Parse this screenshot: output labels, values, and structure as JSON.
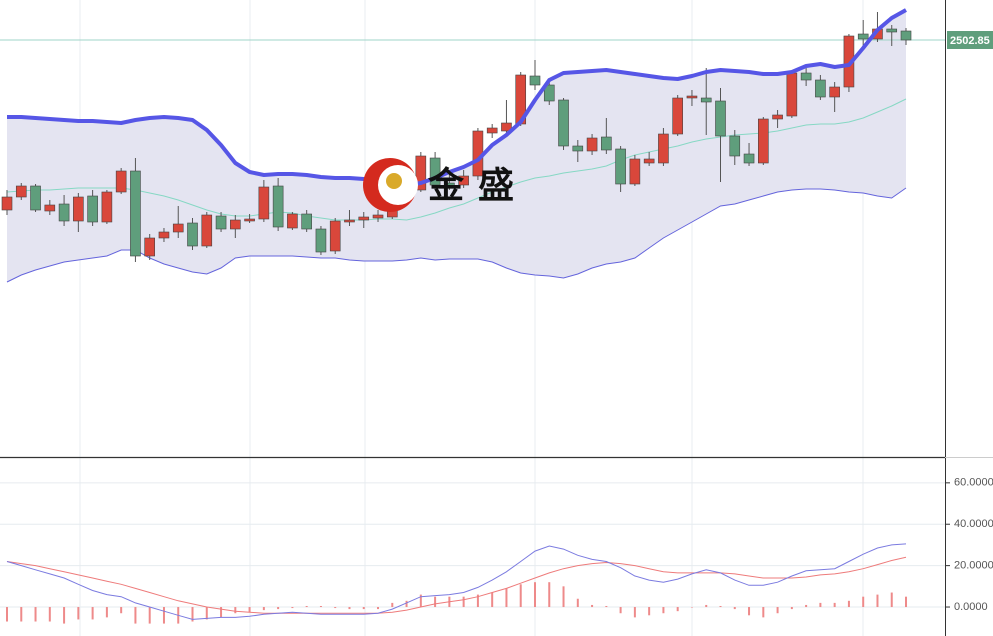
{
  "chart_data": [
    {
      "type": "candlestick",
      "watermark": "金 盛",
      "price_label": 2502.85,
      "ylim": [
        2461.15,
        2506.85
      ],
      "up_color": "#d9473b",
      "down_color": "#5f9e7c",
      "band_color": "#e4e4f1",
      "upper_color": "#5656e6",
      "middle_color": "#86d8c4",
      "lower_color": "#6464dc",
      "open": [
        2485.85,
        2487.15,
        2488.25,
        2485.75,
        2486.45,
        2484.75,
        2487.25,
        2484.65,
        2487.65,
        2489.75,
        2481.25,
        2483.05,
        2483.65,
        2484.55,
        2482.25,
        2485.25,
        2483.95,
        2484.75,
        2484.95,
        2488.25,
        2484.05,
        2485.45,
        2483.95,
        2481.75,
        2484.65,
        2484.85,
        2485.05,
        2485.15,
        2488.35,
        2487.85,
        2491.05,
        2488.55,
        2488.35,
        2489.25,
        2493.55,
        2493.75,
        2494.45,
        2499.25,
        2498.35,
        2496.85,
        2492.25,
        2491.75,
        2493.15,
        2491.95,
        2488.45,
        2490.55,
        2490.55,
        2493.45,
        2497.05,
        2497.05,
        2496.75,
        2493.25,
        2491.45,
        2490.55,
        2494.95,
        2495.25,
        2499.55,
        2498.85,
        2497.15,
        2498.15,
        2503.45,
        2502.95,
        2503.95,
        2503.75
      ],
      "close": [
        2487.15,
        2488.25,
        2485.85,
        2486.35,
        2484.75,
        2487.15,
        2484.65,
        2487.65,
        2489.75,
        2481.25,
        2483.05,
        2483.65,
        2484.45,
        2482.25,
        2485.35,
        2483.95,
        2484.85,
        2484.95,
        2488.15,
        2484.15,
        2485.45,
        2483.95,
        2481.65,
        2484.75,
        2484.85,
        2485.15,
        2485.35,
        2488.35,
        2489.65,
        2491.25,
        2488.35,
        2488.25,
        2489.25,
        2493.75,
        2494.05,
        2494.55,
        2499.35,
        2498.35,
        2496.75,
        2492.25,
        2491.75,
        2493.05,
        2491.85,
        2488.45,
        2490.95,
        2490.95,
        2493.45,
        2497.05,
        2497.25,
        2496.65,
        2493.25,
        2491.25,
        2490.55,
        2494.95,
        2495.35,
        2499.55,
        2498.85,
        2497.15,
        2498.15,
        2503.25,
        2502.95,
        2503.95,
        2503.65,
        2502.85
      ],
      "high": [
        2487.85,
        2488.55,
        2488.45,
        2486.85,
        2487.35,
        2487.55,
        2487.85,
        2487.85,
        2490.05,
        2491.05,
        2483.45,
        2484.05,
        2486.25,
        2485.05,
        2485.65,
        2485.65,
        2485.35,
        2485.45,
        2488.85,
        2489.05,
        2485.65,
        2485.85,
        2484.25,
        2485.05,
        2485.85,
        2485.65,
        2485.85,
        2488.85,
        2490.05,
        2491.65,
        2491.65,
        2489.65,
        2489.85,
        2494.05,
        2494.45,
        2496.85,
        2499.65,
        2500.85,
        2499.05,
        2497.05,
        2492.85,
        2493.45,
        2495.05,
        2492.25,
        2491.35,
        2491.65,
        2494.05,
        2497.35,
        2497.85,
        2500.05,
        2498.05,
        2493.85,
        2492.55,
        2495.15,
        2495.85,
        2499.85,
        2500.05,
        2499.35,
        2498.65,
        2503.45,
        2504.85,
        2505.65,
        2504.35,
        2504.05
      ],
      "low": [
        2485.35,
        2486.85,
        2485.65,
        2485.35,
        2484.25,
        2483.65,
        2484.25,
        2484.45,
        2487.45,
        2480.65,
        2480.85,
        2482.65,
        2483.05,
        2481.85,
        2482.05,
        2483.65,
        2483.05,
        2484.55,
        2484.65,
        2483.75,
        2483.85,
        2483.65,
        2481.35,
        2481.45,
        2484.25,
        2484.05,
        2484.65,
        2484.95,
        2488.05,
        2487.65,
        2487.85,
        2487.85,
        2488.05,
        2488.85,
        2493.05,
        2493.35,
        2494.25,
        2497.85,
        2496.35,
        2491.85,
        2490.65,
        2491.35,
        2491.45,
        2487.65,
        2488.25,
        2490.25,
        2490.25,
        2493.25,
        2496.25,
        2493.35,
        2488.65,
        2490.35,
        2490.25,
        2490.35,
        2494.05,
        2495.05,
        2498.25,
        2496.85,
        2495.65,
        2497.65,
        2502.05,
        2502.65,
        2502.25,
        2502.35
      ],
      "upper": [
        2495.15,
        2495.15,
        2495.05,
        2494.95,
        2494.85,
        2494.75,
        2494.75,
        2494.65,
        2494.55,
        2494.85,
        2495.05,
        2495.15,
        2495.05,
        2494.85,
        2493.85,
        2492.35,
        2490.55,
        2489.65,
        2489.35,
        2489.45,
        2489.45,
        2489.35,
        2489.15,
        2489.05,
        2489.05,
        2488.95,
        2488.75,
        2488.65,
        2488.35,
        2488.55,
        2489.05,
        2489.65,
        2490.15,
        2490.85,
        2492.35,
        2493.35,
        2494.65,
        2496.85,
        2498.85,
        2499.55,
        2499.65,
        2499.75,
        2499.85,
        2499.65,
        2499.45,
        2499.25,
        2499.05,
        2498.95,
        2499.25,
        2499.65,
        2499.85,
        2499.75,
        2499.65,
        2499.45,
        2499.45,
        2499.65,
        2500.25,
        2500.45,
        2500.15,
        2500.35,
        2502.05,
        2503.85,
        2505.05,
        2505.85
      ],
      "middle": [
        2487.65,
        2487.75,
        2487.85,
        2487.85,
        2487.95,
        2488.05,
        2488.05,
        2488.05,
        2488.05,
        2487.85,
        2487.55,
        2487.25,
        2486.85,
        2486.35,
        2485.85,
        2485.45,
        2485.25,
        2485.25,
        2485.45,
        2485.65,
        2485.55,
        2485.25,
        2485.05,
        2484.85,
        2484.85,
        2484.85,
        2484.95,
        2484.95,
        2484.85,
        2485.15,
        2485.55,
        2486.05,
        2486.45,
        2487.05,
        2487.65,
        2488.15,
        2488.65,
        2489.05,
        2489.25,
        2489.55,
        2489.75,
        2489.95,
        2490.25,
        2490.85,
        2491.35,
        2491.65,
        2491.95,
        2492.25,
        2492.65,
        2492.95,
        2493.15,
        2493.35,
        2493.45,
        2493.55,
        2493.75,
        2494.05,
        2494.35,
        2494.45,
        2494.45,
        2494.65,
        2495.05,
        2495.65,
        2496.25,
        2496.95
      ],
      "lower": [
        2478.65,
        2479.35,
        2479.85,
        2480.25,
        2480.65,
        2480.85,
        2481.05,
        2481.25,
        2481.85,
        2481.85,
        2481.05,
        2480.45,
        2480.05,
        2479.65,
        2479.45,
        2480.05,
        2481.05,
        2481.25,
        2481.25,
        2481.25,
        2481.25,
        2481.15,
        2481.05,
        2481.05,
        2480.85,
        2480.75,
        2480.75,
        2480.75,
        2480.85,
        2481.05,
        2480.85,
        2480.95,
        2480.95,
        2480.95,
        2480.65,
        2480.05,
        2479.55,
        2479.35,
        2479.25,
        2479.05,
        2479.45,
        2480.05,
        2480.45,
        2480.65,
        2481.05,
        2482.05,
        2483.05,
        2483.85,
        2484.65,
        2485.45,
        2486.25,
        2486.45,
        2486.85,
        2487.25,
        2487.65,
        2487.85,
        2487.95,
        2487.95,
        2487.85,
        2487.65,
        2487.55,
        2487.25,
        2487.05,
        2488.05
      ]
    },
    {
      "type": "macd",
      "ylim": [
        -14,
        72
      ],
      "yticks": [
        {
          "value": 0,
          "label": "0.0000"
        },
        {
          "value": 20,
          "label": "20.0000"
        },
        {
          "value": 40,
          "label": "40.0000"
        },
        {
          "value": 60,
          "label": "60.0000"
        }
      ],
      "grid": true,
      "dif_color": "#7b7be0",
      "dea_color": "#ee7b7b",
      "hist_color": "#ee8a8a",
      "dif": [
        22,
        20,
        18,
        16,
        14,
        11,
        8,
        6,
        5,
        2,
        0,
        -2,
        -4,
        -6,
        -5.5,
        -5,
        -5,
        -4.5,
        -3.5,
        -3,
        -2.5,
        -3,
        -3.5,
        -3.5,
        -3.5,
        -3.5,
        -3,
        -1,
        2,
        5,
        5.5,
        6,
        7,
        9.5,
        13,
        17,
        22,
        27,
        29.5,
        28,
        25,
        23,
        22,
        19,
        15,
        13,
        12,
        13.5,
        16,
        18,
        16.5,
        13,
        10.5,
        10.5,
        12,
        15,
        17.5,
        18,
        18.5,
        22,
        25.5,
        28.5,
        30,
        30.5
      ],
      "dea": [
        22,
        21,
        20,
        18.5,
        17,
        15.5,
        14,
        12.5,
        11,
        9,
        7,
        5,
        3,
        1.5,
        0,
        -1,
        -2,
        -2.5,
        -3,
        -3,
        -3,
        -3,
        -3,
        -3,
        -3,
        -3,
        -3,
        -2.5,
        -1.5,
        0,
        1.5,
        2.5,
        3.5,
        5,
        7,
        9,
        11.5,
        14,
        16.5,
        18.5,
        20,
        21,
        21.5,
        21,
        20,
        18.5,
        17,
        16.5,
        16.5,
        16.5,
        16.5,
        16,
        15,
        14,
        14,
        14,
        14.5,
        15.5,
        16,
        17,
        18.5,
        20.5,
        22.5,
        24
      ],
      "histogram": [
        -7,
        -7,
        -7,
        -7,
        -8,
        -6,
        -6,
        -5,
        -3,
        -8,
        -8,
        -8,
        -8,
        -7,
        -6,
        -5,
        -3,
        -2.5,
        -1.5,
        -1,
        -0.5,
        0.5,
        0.5,
        -0.5,
        -1,
        -1,
        -1,
        2,
        3,
        6,
        5,
        5,
        5,
        6,
        7,
        9,
        11,
        12,
        12,
        10,
        4,
        1,
        0.5,
        -3,
        -5,
        -4,
        -3,
        -2,
        0,
        1,
        0.5,
        -1,
        -4,
        -5,
        -3,
        -1,
        1,
        2,
        2,
        3,
        5,
        6,
        7,
        5
      ]
    }
  ]
}
